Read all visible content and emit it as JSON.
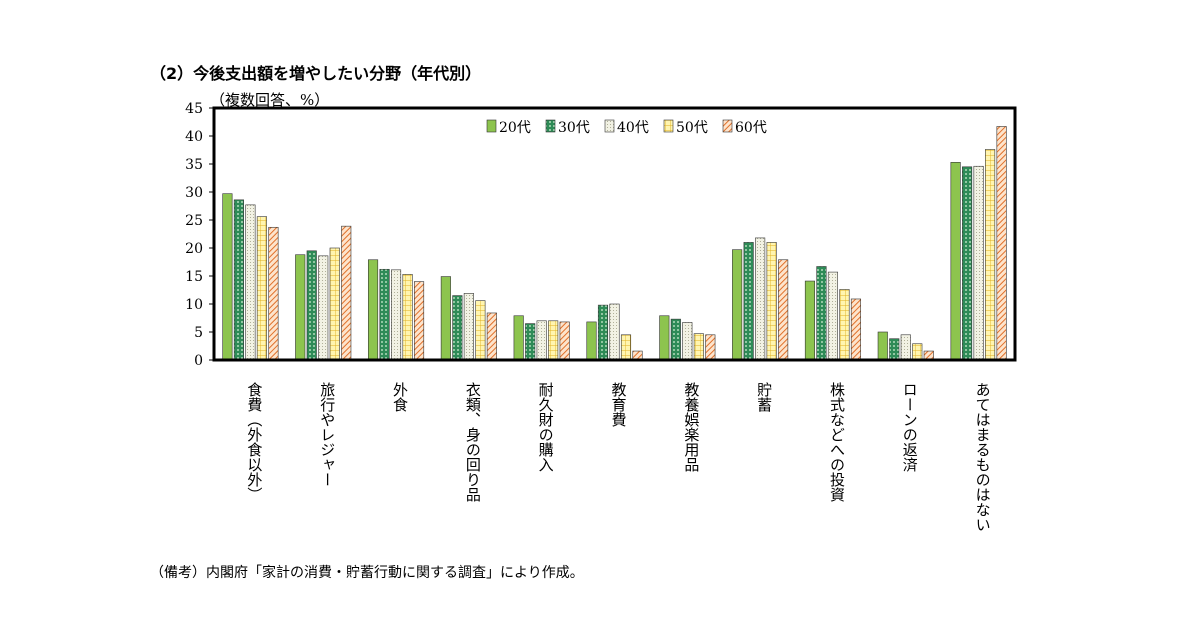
{
  "page": {
    "title": "（2）今後支出額を増やしたい分野（年代別）",
    "unit_label": "（複数回答、%）",
    "source": "（備考）内閣府「家計の消費・貯蓄行動に関する調査」により作成。"
  },
  "chart_data": {
    "type": "bar",
    "title": "（2）今後支出額を増やしたい分野（年代別）",
    "ylabel": "（複数回答、%）",
    "xlabel": "",
    "ylim": [
      0,
      45
    ],
    "yticks": [
      0,
      5,
      10,
      15,
      20,
      25,
      30,
      35,
      40,
      45
    ],
    "grid": false,
    "legend_position": "top-center",
    "categories": [
      "食費（外食以外）",
      "旅行やレジャー",
      "外食",
      "衣類、身の回り品",
      "耐久財の購入",
      "教育費",
      "教養娯楽用品",
      "貯蓄",
      "株式などへの投資",
      "ローンの返済",
      "あてはまるものはない"
    ],
    "series": [
      {
        "name": "20代",
        "color": "#8dc44e",
        "pattern": "solid",
        "values": [
          29.7,
          18.8,
          17.9,
          14.9,
          7.9,
          6.8,
          7.9,
          19.7,
          14.1,
          5.0,
          35.3
        ]
      },
      {
        "name": "30代",
        "color": "#2e8b57",
        "pattern": "dots",
        "values": [
          28.6,
          19.5,
          16.2,
          11.5,
          6.5,
          9.8,
          7.3,
          21.0,
          16.7,
          3.8,
          34.5
        ]
      },
      {
        "name": "40代",
        "color": "#f2f2e4",
        "pattern": "fine-dots",
        "values": [
          27.7,
          18.6,
          16.1,
          11.9,
          7.0,
          10.0,
          6.7,
          21.8,
          15.7,
          4.5,
          34.6
        ]
      },
      {
        "name": "50代",
        "color": "#fff5b0",
        "pattern": "grid",
        "values": [
          25.6,
          20.0,
          15.3,
          10.6,
          7.0,
          4.5,
          4.7,
          21.0,
          12.6,
          2.9,
          37.6
        ]
      },
      {
        "name": "60代",
        "color": "#f7c89a",
        "pattern": "diagonal",
        "values": [
          23.7,
          23.9,
          14.0,
          8.4,
          6.8,
          1.6,
          4.5,
          17.9,
          10.9,
          1.6,
          41.7
        ]
      }
    ]
  }
}
